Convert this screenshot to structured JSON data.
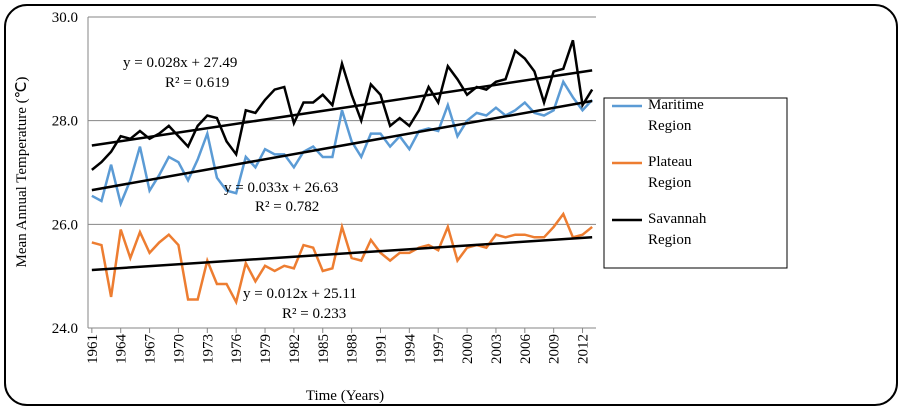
{
  "chart_data": {
    "type": "line",
    "y_label": "Mean Annual Temperature (℃)",
    "x_label": "Time (Years)",
    "x": [
      1961,
      1962,
      1963,
      1964,
      1965,
      1966,
      1967,
      1968,
      1969,
      1970,
      1971,
      1972,
      1973,
      1974,
      1975,
      1976,
      1977,
      1978,
      1979,
      1980,
      1981,
      1982,
      1983,
      1984,
      1985,
      1986,
      1987,
      1988,
      1989,
      1990,
      1991,
      1992,
      1993,
      1994,
      1995,
      1996,
      1997,
      1998,
      1999,
      2000,
      2001,
      2002,
      2003,
      2004,
      2005,
      2006,
      2007,
      2008,
      2009,
      2010,
      2011,
      2012,
      2013
    ],
    "xlim": [
      1960.6,
      2013.4
    ],
    "xticks": [
      1961,
      1964,
      1967,
      1970,
      1973,
      1976,
      1979,
      1982,
      1985,
      1988,
      1991,
      1994,
      1997,
      2000,
      2003,
      2006,
      2009,
      2012
    ],
    "ylim": [
      24,
      30
    ],
    "yticks": [
      {
        "value": 24,
        "label": "24.0"
      },
      {
        "value": 26,
        "label": "26.0"
      },
      {
        "value": 28,
        "label": "28.0"
      },
      {
        "value": 30,
        "label": "30.0"
      }
    ],
    "grid": true,
    "series": [
      {
        "name": "Maritime Region",
        "color": "#5b9bd5",
        "trend": [
          26.66,
          28.38
        ],
        "values": [
          26.55,
          26.45,
          27.15,
          26.4,
          26.85,
          27.5,
          26.65,
          26.95,
          27.3,
          27.2,
          26.85,
          27.25,
          27.75,
          26.9,
          26.65,
          26.6,
          27.3,
          27.1,
          27.45,
          27.35,
          27.35,
          27.1,
          27.4,
          27.5,
          27.3,
          27.3,
          28.2,
          27.6,
          27.3,
          27.75,
          27.75,
          27.5,
          27.7,
          27.45,
          27.8,
          27.85,
          27.8,
          28.3,
          27.7,
          28.0,
          28.15,
          28.1,
          28.25,
          28.1,
          28.2,
          28.35,
          28.15,
          28.1,
          28.2,
          28.75,
          28.45,
          28.2,
          28.4
        ]
      },
      {
        "name": "Plateau Region",
        "color": "#ed7d31",
        "trend": [
          25.12,
          25.75
        ],
        "values": [
          25.65,
          25.6,
          24.6,
          25.9,
          25.35,
          25.85,
          25.45,
          25.65,
          25.8,
          25.6,
          24.55,
          24.55,
          25.3,
          24.85,
          24.85,
          24.5,
          25.25,
          24.9,
          25.2,
          25.1,
          25.2,
          25.15,
          25.6,
          25.55,
          25.1,
          25.15,
          25.95,
          25.35,
          25.3,
          25.7,
          25.45,
          25.3,
          25.45,
          25.45,
          25.55,
          25.6,
          25.5,
          25.95,
          25.3,
          25.55,
          25.6,
          25.55,
          25.8,
          25.75,
          25.8,
          25.8,
          25.75,
          25.75,
          25.95,
          26.2,
          25.75,
          25.8,
          25.95
        ]
      },
      {
        "name": "Savannah Region",
        "color": "#000000",
        "trend": [
          27.52,
          28.97
        ],
        "values": [
          27.05,
          27.2,
          27.4,
          27.7,
          27.65,
          27.8,
          27.65,
          27.75,
          27.9,
          27.7,
          27.5,
          27.9,
          28.1,
          28.05,
          27.6,
          27.35,
          28.2,
          28.15,
          28.4,
          28.6,
          28.65,
          27.95,
          28.35,
          28.35,
          28.5,
          28.3,
          29.1,
          28.5,
          28.0,
          28.7,
          28.5,
          27.9,
          28.05,
          27.9,
          28.2,
          28.65,
          28.35,
          29.05,
          28.8,
          28.5,
          28.65,
          28.6,
          28.75,
          28.8,
          29.35,
          29.2,
          28.95,
          28.35,
          28.95,
          29.0,
          29.55,
          28.3,
          28.6
        ]
      }
    ],
    "annotations": [
      {
        "equation": "y = 0.028x + 27.49",
        "r2": "R² = 0.619"
      },
      {
        "equation": "y = 0.033x + 26.63",
        "r2": "R² = 0.782"
      },
      {
        "equation": "y = 0.012x + 25.11",
        "r2": "R² = 0.233"
      }
    ]
  }
}
